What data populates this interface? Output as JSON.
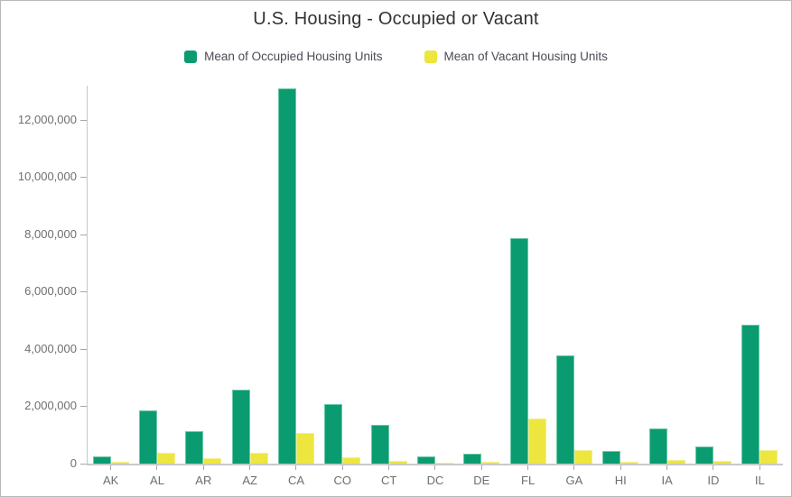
{
  "chart_data": {
    "type": "bar",
    "title": "U.S. Housing - Occupied or Vacant",
    "categories": [
      "AK",
      "AL",
      "AR",
      "AZ",
      "CA",
      "CO",
      "CT",
      "DC",
      "DE",
      "FL",
      "GA",
      "HI",
      "IA",
      "ID",
      "IL"
    ],
    "series": [
      {
        "name": "Mean of Occupied Housing Units",
        "color": "#0a9c70",
        "values": [
          240000,
          1860000,
          1150000,
          2570000,
          13080000,
          2070000,
          1360000,
          260000,
          340000,
          7870000,
          3790000,
          440000,
          1240000,
          610000,
          4840000
        ]
      },
      {
        "name": "Mean of Vacant Housing Units",
        "color": "#ede63e",
        "values": [
          60000,
          370000,
          190000,
          390000,
          1070000,
          210000,
          100000,
          40000,
          80000,
          1590000,
          460000,
          60000,
          130000,
          90000,
          480000
        ]
      }
    ],
    "xlabel": "",
    "ylabel": "",
    "ylim": [
      0,
      13200000
    ],
    "yticks": [
      0,
      2000000,
      4000000,
      6000000,
      8000000,
      10000000,
      12000000
    ],
    "grid": false,
    "legend_position": "top",
    "axis_color": "#c6c6c6",
    "tick_label_color": "#6e6e6e",
    "title_color": "#323232"
  }
}
